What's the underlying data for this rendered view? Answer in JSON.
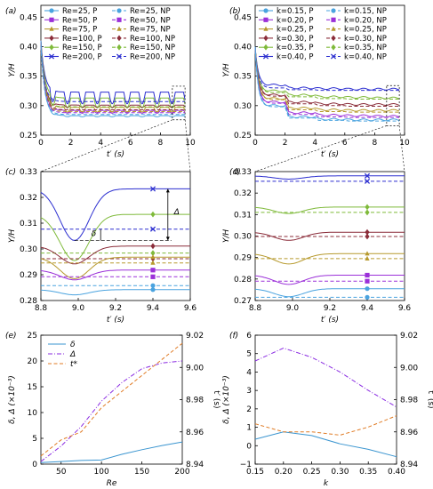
{
  "palette": {
    "Re25": "#4aa3df",
    "Re50": "#9b30d9",
    "Re75": "#b79a2e",
    "Re100": "#8b2d3a",
    "Re150": "#7fba3a",
    "Re200": "#2c2fd0",
    "delta": "#3a95d0",
    "Delta": "#8a2be2",
    "tstar": "#e07b25",
    "axis": "#000000"
  },
  "chart_data": [
    {
      "id": "a",
      "panel_label": "(a)",
      "type": "line",
      "xlabel": "t′ (s)",
      "ylabel": "Y/H",
      "xlim": [
        0,
        10
      ],
      "ylim": [
        0.25,
        0.47
      ],
      "xticks": [
        "0",
        "2",
        "4",
        "6",
        "8",
        "10"
      ],
      "yticks": [
        "0.25",
        "0.30",
        "0.35",
        "0.40",
        "0.45"
      ],
      "legend": [
        {
          "label": "Re=25, P",
          "style": "solid",
          "marker": "circle",
          "color": "Re25"
        },
        {
          "label": "Re=25, NP",
          "style": "dashed",
          "marker": "circle",
          "color": "Re25"
        },
        {
          "label": "Re=50, P",
          "style": "solid",
          "marker": "square",
          "color": "Re50"
        },
        {
          "label": "Re=50, NP",
          "style": "dashed",
          "marker": "square",
          "color": "Re50"
        },
        {
          "label": "Re=75, P",
          "style": "solid",
          "marker": "triangle",
          "color": "Re75"
        },
        {
          "label": "Re=75, NP",
          "style": "dashed",
          "marker": "triangle",
          "color": "Re75"
        },
        {
          "label": "Re=100, P",
          "style": "solid",
          "marker": "diamond",
          "color": "Re100"
        },
        {
          "label": "Re=100, NP",
          "style": "dashed",
          "marker": "diamond",
          "color": "Re100"
        },
        {
          "label": "Re=150, P",
          "style": "solid",
          "marker": "diamond",
          "color": "Re150"
        },
        {
          "label": "Re=150, NP",
          "style": "dashed",
          "marker": "diamond",
          "color": "Re150"
        },
        {
          "label": "Re=200, P",
          "style": "solid",
          "marker": "x",
          "color": "Re200"
        },
        {
          "label": "Re=200, NP",
          "style": "dashed",
          "marker": "x",
          "color": "Re200"
        }
      ],
      "series": [
        {
          "color": "Re200",
          "style": "solid",
          "base": 0.323,
          "amp": 0.02
        },
        {
          "color": "Re150",
          "style": "solid",
          "base": 0.313,
          "amp": 0.017
        },
        {
          "color": "Re100",
          "style": "solid",
          "base": 0.301,
          "amp": 0.004
        },
        {
          "color": "Re75",
          "style": "solid",
          "base": 0.297,
          "amp": 0.008
        },
        {
          "color": "Re50",
          "style": "solid",
          "base": 0.292,
          "amp": 0.005
        },
        {
          "color": "Re25",
          "style": "solid",
          "base": 0.283,
          "amp": 0.002
        },
        {
          "color": "Re200",
          "style": "dashed",
          "base": 0.307,
          "amp": 0
        },
        {
          "color": "Re150",
          "style": "dashed",
          "base": 0.298,
          "amp": 0
        },
        {
          "color": "Re100",
          "style": "dashed",
          "base": 0.293,
          "amp": 0
        },
        {
          "color": "Re75",
          "style": "dashed",
          "base": 0.29,
          "amp": 0
        },
        {
          "color": "Re50",
          "style": "dashed",
          "base": 0.288,
          "amp": 0
        },
        {
          "color": "Re25",
          "style": "dashed",
          "base": 0.285,
          "amp": 0
        }
      ]
    },
    {
      "id": "b",
      "panel_label": "(b)",
      "type": "line",
      "xlabel": "t′ (s)",
      "ylabel": "Y/H",
      "xlim": [
        0,
        10
      ],
      "ylim": [
        0.25,
        0.47
      ],
      "xticks": [
        "0",
        "2",
        "4",
        "6",
        "8",
        "10"
      ],
      "yticks": [
        "0.25",
        "0.30",
        "0.35",
        "0.40",
        "0.45"
      ],
      "legend": [
        {
          "label": "k=0.15, P",
          "style": "solid",
          "marker": "circle",
          "color": "Re25"
        },
        {
          "label": "k=0.15, NP",
          "style": "dashed",
          "marker": "circle",
          "color": "Re25"
        },
        {
          "label": "k=0.20, P",
          "style": "solid",
          "marker": "square",
          "color": "Re50"
        },
        {
          "label": "k=0.20, NP",
          "style": "dashed",
          "marker": "square",
          "color": "Re50"
        },
        {
          "label": "k=0.25, P",
          "style": "solid",
          "marker": "triangle",
          "color": "Re75"
        },
        {
          "label": "k=0.25, NP",
          "style": "dashed",
          "marker": "triangle",
          "color": "Re75"
        },
        {
          "label": "k=0.30, P",
          "style": "solid",
          "marker": "diamond",
          "color": "Re100"
        },
        {
          "label": "k=0.30, NP",
          "style": "dashed",
          "marker": "diamond",
          "color": "Re100"
        },
        {
          "label": "k=0.35, P",
          "style": "solid",
          "marker": "diamond",
          "color": "Re150"
        },
        {
          "label": "k=0.35, NP",
          "style": "dashed",
          "marker": "diamond",
          "color": "Re150"
        },
        {
          "label": "k=0.40, P",
          "style": "solid",
          "marker": "x",
          "color": "Re200"
        },
        {
          "label": "k=0.40, NP",
          "style": "dashed",
          "marker": "x",
          "color": "Re200"
        }
      ],
      "series": [
        {
          "color": "Re200",
          "style": "solid",
          "levels": [
            0.335,
            0.33,
            0.329,
            0.328,
            0.328
          ]
        },
        {
          "color": "Re200",
          "style": "dashed",
          "levels": [
            0.33,
            0.327,
            0.326,
            0.326,
            0.326
          ]
        },
        {
          "color": "Re150",
          "style": "solid",
          "levels": [
            0.325,
            0.318,
            0.315,
            0.314,
            0.313
          ]
        },
        {
          "color": "Re150",
          "style": "dashed",
          "levels": [
            0.322,
            0.315,
            0.312,
            0.311,
            0.311
          ]
        },
        {
          "color": "Re100",
          "style": "solid",
          "levels": [
            0.318,
            0.306,
            0.303,
            0.302,
            0.302
          ]
        },
        {
          "color": "Re100",
          "style": "dashed",
          "levels": [
            0.316,
            0.303,
            0.3,
            0.299,
            0.299
          ]
        },
        {
          "color": "Re75",
          "style": "solid",
          "levels": [
            0.312,
            0.296,
            0.293,
            0.292,
            0.292
          ]
        },
        {
          "color": "Re75",
          "style": "dashed",
          "levels": [
            0.31,
            0.293,
            0.29,
            0.289,
            0.289
          ]
        },
        {
          "color": "Re50",
          "style": "solid",
          "levels": [
            0.306,
            0.288,
            0.284,
            0.283,
            0.282
          ]
        },
        {
          "color": "Re50",
          "style": "dashed",
          "levels": [
            0.304,
            0.285,
            0.281,
            0.28,
            0.28
          ]
        },
        {
          "color": "Re25",
          "style": "solid",
          "levels": [
            0.3,
            0.281,
            0.277,
            0.276,
            0.276
          ]
        },
        {
          "color": "Re25",
          "style": "dashed",
          "levels": [
            0.298,
            0.279,
            0.275,
            0.274,
            0.274
          ]
        }
      ]
    },
    {
      "id": "c",
      "panel_label": "(c)",
      "type": "line",
      "xlabel": "t′ (s)",
      "ylabel": "Y/H",
      "xlim": [
        8.8,
        9.6
      ],
      "ylim": [
        0.28,
        0.33
      ],
      "xticks": [
        "8.8",
        "9.0",
        "9.2",
        "9.4",
        "9.6"
      ],
      "yticks": [
        "0.28",
        "0.29",
        "0.30",
        "0.31",
        "0.32",
        "0.33"
      ],
      "annotations": [
        "Δ",
        "δ"
      ],
      "series": [
        {
          "color": "Re200",
          "style": "solid",
          "marker": "x",
          "base": 0.3233,
          "dip": 0.3033
        },
        {
          "color": "Re200",
          "style": "dashed",
          "marker": "x",
          "base": 0.3077,
          "dip": 0.3077
        },
        {
          "color": "Re150",
          "style": "solid",
          "marker": "diamond",
          "base": 0.3134,
          "dip": 0.2955
        },
        {
          "color": "Re150",
          "style": "dashed",
          "marker": "diamond",
          "base": 0.2984,
          "dip": 0.2984
        },
        {
          "color": "Re100",
          "style": "solid",
          "marker": "diamond",
          "base": 0.3011,
          "dip": 0.2942
        },
        {
          "color": "Re100",
          "style": "dashed",
          "marker": "diamond",
          "base": 0.2962,
          "dip": 0.2962
        },
        {
          "color": "Re75",
          "style": "solid",
          "marker": "triangle",
          "base": 0.2968,
          "dip": 0.2885
        },
        {
          "color": "Re75",
          "style": "dashed",
          "marker": "triangle",
          "base": 0.2946,
          "dip": 0.2946
        },
        {
          "color": "Re50",
          "style": "solid",
          "marker": "square",
          "base": 0.2918,
          "dip": 0.288
        },
        {
          "color": "Re50",
          "style": "dashed",
          "marker": "square",
          "base": 0.2892,
          "dip": 0.2892
        },
        {
          "color": "Re25",
          "style": "solid",
          "marker": "circle",
          "base": 0.2842,
          "dip": 0.2822
        },
        {
          "color": "Re25",
          "style": "dashed",
          "marker": "circle",
          "base": 0.2858,
          "dip": 0.2858
        }
      ]
    },
    {
      "id": "d",
      "panel_label": "(d)",
      "type": "line",
      "xlabel": "t′ (s)",
      "ylabel": "Y/H",
      "xlim": [
        8.8,
        9.6
      ],
      "ylim": [
        0.27,
        0.33
      ],
      "xticks": [
        "8.8",
        "9.0",
        "9.2",
        "9.4",
        "9.6"
      ],
      "yticks": [
        "0.27",
        "0.28",
        "0.29",
        "0.30",
        "0.31",
        "0.32",
        "0.33"
      ],
      "series": [
        {
          "color": "Re200",
          "style": "solid",
          "marker": "x",
          "base": 0.328,
          "dip": 0.3265
        },
        {
          "color": "Re200",
          "style": "dashed",
          "marker": "x",
          "base": 0.3255,
          "dip": 0.3255
        },
        {
          "color": "Re150",
          "style": "solid",
          "marker": "diamond",
          "base": 0.3135,
          "dip": 0.3105
        },
        {
          "color": "Re150",
          "style": "dashed",
          "marker": "diamond",
          "base": 0.311,
          "dip": 0.311
        },
        {
          "color": "Re100",
          "style": "solid",
          "marker": "diamond",
          "base": 0.3018,
          "dip": 0.298
        },
        {
          "color": "Re100",
          "style": "dashed",
          "marker": "diamond",
          "base": 0.2998,
          "dip": 0.2998
        },
        {
          "color": "Re75",
          "style": "solid",
          "marker": "triangle",
          "base": 0.2918,
          "dip": 0.287
        },
        {
          "color": "Re75",
          "style": "dashed",
          "marker": "triangle",
          "base": 0.2895,
          "dip": 0.2895
        },
        {
          "color": "Re50",
          "style": "solid",
          "marker": "square",
          "base": 0.2818,
          "dip": 0.2775
        },
        {
          "color": "Re50",
          "style": "dashed",
          "marker": "square",
          "base": 0.279,
          "dip": 0.279
        },
        {
          "color": "Re25",
          "style": "solid",
          "marker": "circle",
          "base": 0.2755,
          "dip": 0.2718
        },
        {
          "color": "Re25",
          "style": "dashed",
          "marker": "circle",
          "base": 0.2715,
          "dip": 0.2715
        }
      ]
    },
    {
      "id": "e",
      "panel_label": "(e)",
      "type": "line",
      "xlabel": "Re",
      "ylabel": "δ, Δ (×10⁻³)",
      "ylabel_right": "t′ (s)",
      "xlim": [
        25,
        200
      ],
      "ylim": [
        0,
        25
      ],
      "ylim_right": [
        8.94,
        9.02
      ],
      "xticks_at": [
        50,
        100,
        150,
        200
      ],
      "xticks": [
        "50",
        "100",
        "150",
        "200"
      ],
      "yticks": [
        "0",
        "5",
        "10",
        "15",
        "20",
        "25"
      ],
      "yticks_right": [
        "8.94",
        "8.96",
        "8.98",
        "9.00",
        "9.02"
      ],
      "legend": [
        {
          "label": "δ",
          "style": "solid",
          "color": "delta"
        },
        {
          "label": "Δ",
          "style": "dashdot",
          "color": "Delta"
        },
        {
          "label": "t*",
          "style": "dashed",
          "color": "tstar"
        }
      ],
      "x": [
        25,
        50,
        75,
        100,
        125,
        150,
        175,
        200
      ],
      "series": [
        {
          "name": "δ",
          "axis": "left",
          "values": [
            0.3,
            0.5,
            0.7,
            0.8,
            1.9,
            2.8,
            3.6,
            4.3
          ]
        },
        {
          "name": "Δ",
          "axis": "left",
          "values": [
            0.5,
            3.5,
            7.3,
            12.2,
            15.8,
            18.5,
            19.6,
            20.0
          ]
        },
        {
          "name": "t*",
          "axis": "right",
          "values": [
            8.945,
            8.955,
            8.96,
            8.975,
            8.985,
            8.995,
            9.005,
            9.015
          ]
        }
      ]
    },
    {
      "id": "f",
      "panel_label": "(f)",
      "type": "line",
      "xlabel": "k",
      "ylabel": "δ, Δ (×10⁻³)",
      "ylabel_right": "t′ (s)",
      "xlim": [
        0.15,
        0.4
      ],
      "ylim": [
        -1,
        6
      ],
      "ylim_right": [
        8.94,
        9.02
      ],
      "xticks_at": [
        0.15,
        0.2,
        0.25,
        0.3,
        0.35,
        0.4
      ],
      "xticks": [
        "0.15",
        "0.20",
        "0.25",
        "0.30",
        "0.35",
        "0.40"
      ],
      "yticks": [
        "−1",
        "0",
        "1",
        "2",
        "3",
        "4",
        "5",
        "6"
      ],
      "yticks_right": [
        "8.94",
        "8.96",
        "8.98",
        "9.00",
        "9.02"
      ],
      "x": [
        0.15,
        0.2,
        0.25,
        0.3,
        0.35,
        0.4
      ],
      "series": [
        {
          "name": "δ",
          "axis": "left",
          "values": [
            0.35,
            0.75,
            0.55,
            0.1,
            -0.2,
            -0.6
          ]
        },
        {
          "name": "Δ",
          "axis": "left",
          "values": [
            4.6,
            5.3,
            4.8,
            4.0,
            3.0,
            2.1
          ]
        },
        {
          "name": "t*",
          "axis": "right",
          "values": [
            8.965,
            8.96,
            8.96,
            8.958,
            8.963,
            8.97
          ]
        }
      ]
    }
  ]
}
